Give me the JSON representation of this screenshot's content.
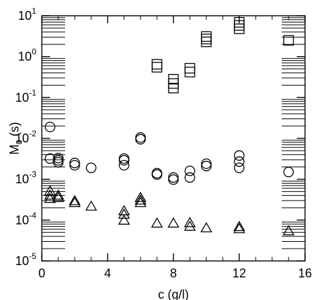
{
  "chart_data": {
    "type": "scatter",
    "title": "",
    "xlabel": "c (g/l)",
    "ylabel_main": "M",
    "ylabel_sub": "0",
    "ylabel_tail": " (s)",
    "yscale": "log",
    "xlim": [
      0,
      16
    ],
    "ylim_exp": [
      -5,
      1
    ],
    "x_ticks": [
      {
        "value": 0,
        "label": "0"
      },
      {
        "value": 4,
        "label": "4"
      },
      {
        "value": 8,
        "label": "8"
      },
      {
        "value": 12,
        "label": "12"
      },
      {
        "value": 16,
        "label": "16"
      }
    ],
    "y_ticks": [
      {
        "exp": 1,
        "base": "10",
        "sup": "1"
      },
      {
        "exp": 0,
        "base": "10",
        "sup": "0"
      },
      {
        "exp": -1,
        "base": "10",
        "sup": "-1"
      },
      {
        "exp": -2,
        "base": "10",
        "sup": "-2"
      },
      {
        "exp": -3,
        "base": "10",
        "sup": "-3"
      },
      {
        "exp": -4,
        "base": "10",
        "sup": "-4"
      },
      {
        "exp": -5,
        "base": "10",
        "sup": "-5"
      }
    ],
    "grid": false,
    "series": [
      {
        "marker": "square",
        "points": [
          [
            7,
            0.55
          ],
          [
            7,
            0.65
          ],
          [
            8,
            0.17
          ],
          [
            8,
            0.22
          ],
          [
            8,
            0.28
          ],
          [
            9,
            0.42
          ],
          [
            9,
            0.52
          ],
          [
            10,
            2.3
          ],
          [
            10,
            2.7
          ],
          [
            10,
            3.1
          ],
          [
            12,
            4.8
          ],
          [
            12,
            5.8
          ],
          [
            12,
            6.9
          ],
          [
            15,
            2.5
          ]
        ]
      },
      {
        "marker": "circle",
        "points": [
          [
            0.5,
            0.019
          ],
          [
            0.5,
            0.0032
          ],
          [
            1,
            0.0026
          ],
          [
            1,
            0.0029
          ],
          [
            1,
            0.0033
          ],
          [
            2,
            0.0022
          ],
          [
            2,
            0.0025
          ],
          [
            3,
            0.0019
          ],
          [
            5,
            0.0022
          ],
          [
            5,
            0.0029
          ],
          [
            5,
            0.0032
          ],
          [
            6,
            0.0095
          ],
          [
            6,
            0.0105
          ],
          [
            7,
            0.0013
          ],
          [
            7,
            0.0014
          ],
          [
            8,
            0.00098
          ],
          [
            8,
            0.0011
          ],
          [
            9,
            0.0011
          ],
          [
            9,
            0.0016
          ],
          [
            10,
            0.0021
          ],
          [
            10,
            0.0024
          ],
          [
            12,
            0.0019
          ],
          [
            12,
            0.0027
          ],
          [
            12,
            0.0038
          ],
          [
            15,
            0.0015
          ]
        ]
      },
      {
        "marker": "triangle",
        "points": [
          [
            0.5,
            0.00034
          ],
          [
            0.5,
            0.00041
          ],
          [
            0.5,
            0.00052
          ],
          [
            1,
            0.00036
          ],
          [
            1,
            0.00041
          ],
          [
            2,
            0.00027
          ],
          [
            2,
            0.0003
          ],
          [
            3,
            0.00022
          ],
          [
            5,
            0.0001
          ],
          [
            5,
            0.00014
          ],
          [
            5,
            0.00017
          ],
          [
            6,
            0.00027
          ],
          [
            6,
            0.00031
          ],
          [
            6,
            0.00036
          ],
          [
            7,
            8.5e-05
          ],
          [
            8,
            8.5e-05
          ],
          [
            9,
            7.1e-05
          ],
          [
            9,
            8.7e-05
          ],
          [
            10,
            6.5e-05
          ],
          [
            12,
            6.2e-05
          ],
          [
            12,
            7e-05
          ],
          [
            15,
            5.5e-05
          ]
        ]
      }
    ]
  }
}
